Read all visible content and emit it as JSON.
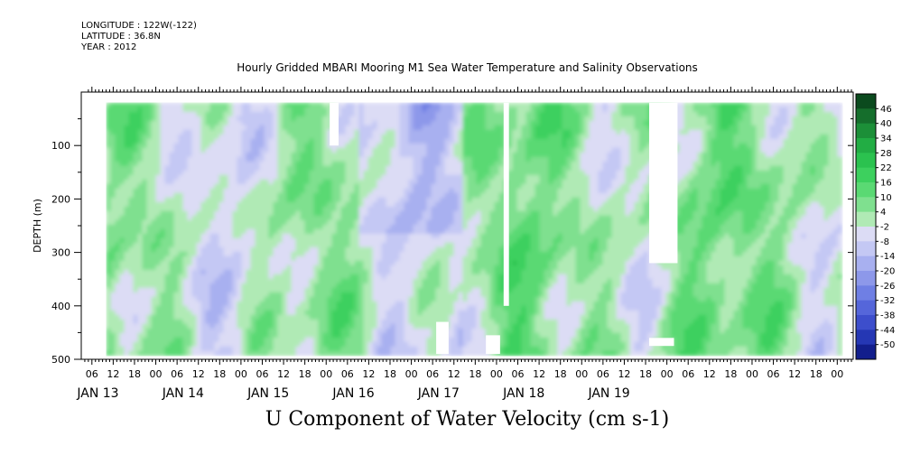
{
  "header": {
    "longitude": "LONGITUDE : 122W(-122)",
    "latitude": "LATITUDE : 36.8N",
    "year": "YEAR : 2012",
    "title": "Hourly Gridded MBARI Mooring M1 Sea Water Temperature and Salinity Observations",
    "variable": "U Component of Water Velocity (cm s-1)"
  },
  "chart_data": {
    "type": "heatmap",
    "title": "Hourly Gridded MBARI Mooring M1 Sea Water Temperature and Salinity Observations",
    "variable": "U Component of Water Velocity (cm s-1)",
    "ylabel": "DEPTH (m)",
    "y_inverted": true,
    "ylim": [
      0,
      500
    ],
    "y_ticks": [
      100,
      200,
      300,
      400,
      500
    ],
    "x_hour_ticks": [
      "06",
      "12",
      "18",
      "00",
      "06",
      "12",
      "18",
      "00",
      "06",
      "12",
      "18",
      "00",
      "06",
      "12",
      "18",
      "00",
      "06",
      "12",
      "18",
      "00",
      "06",
      "12",
      "18",
      "00",
      "06",
      "12",
      "18",
      "00",
      "06",
      "12",
      "18",
      "00",
      "06",
      "12",
      "18",
      "00"
    ],
    "x_day_labels": [
      "JAN 13",
      "JAN 14",
      "JAN 15",
      "JAN 16",
      "JAN 17",
      "JAN 18",
      "JAN 19"
    ],
    "colorbar_levels": [
      48,
      46,
      40,
      34,
      28,
      22,
      16,
      10,
      4,
      -2,
      -8,
      -14,
      -20,
      -26,
      -32,
      -38,
      -44,
      -50
    ],
    "colorbar_labels": [
      "46",
      "40",
      "34",
      "28",
      "22",
      "16",
      "10",
      "4",
      "-2",
      "-8",
      "-14",
      "-20",
      "-26",
      "-32",
      "-38",
      "-44",
      "-50"
    ],
    "colorbar_colors": [
      "#0b4a1e",
      "#156e2c",
      "#1c8f38",
      "#22ad44",
      "#2bc24f",
      "#3dd05e",
      "#5ad973",
      "#7fe08f",
      "#b0eab5",
      "#dcdcf5",
      "#c4c8f4",
      "#a8b0f0",
      "#8d98ea",
      "#6f7fe4",
      "#5566da",
      "#3d4ecc",
      "#2537b4",
      "#121e8c"
    ],
    "data_coverage": {
      "depth_min": 20,
      "depth_max": 485,
      "start": "JAN 13 10:00",
      "end": "JAN 20 01:00"
    }
  }
}
